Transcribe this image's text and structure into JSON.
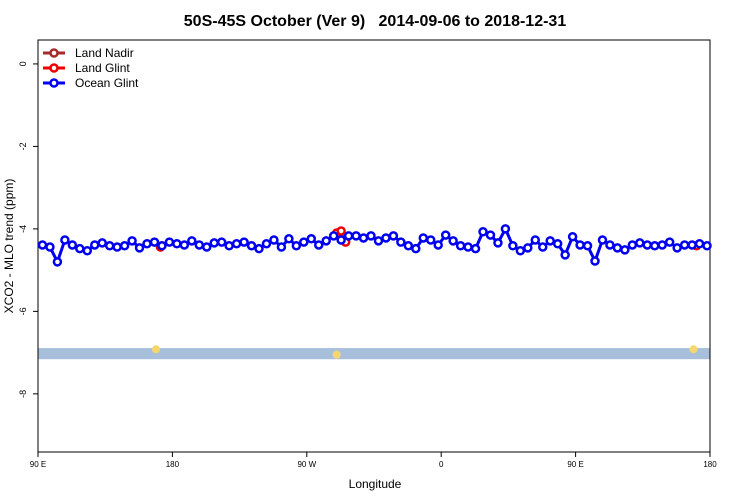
{
  "chart_data": {
    "type": "line",
    "title": "50S-45S October (Ver 9)   2014-09-06 to 2018-12-31",
    "xlabel": "Longitude",
    "ylabel": "XCO2 - MLO trend (ppm)",
    "xlim": [
      90,
      540
    ],
    "ylim": [
      -9.41,
      0.58
    ],
    "xticks": [
      {
        "value": 90,
        "label": "90 E"
      },
      {
        "value": 180,
        "label": "180"
      },
      {
        "value": 270,
        "label": "90 W"
      },
      {
        "value": 360,
        "label": "0"
      },
      {
        "value": 450,
        "label": "90 E"
      },
      {
        "value": 540,
        "label": "180"
      }
    ],
    "yticks": [
      0,
      -2,
      -4,
      -6,
      -8
    ],
    "legend": "top-left",
    "band": {
      "ylim": [
        -6.89,
        -7.16
      ],
      "color": "#a8bfdc"
    },
    "markers": {
      "color": "#f5d76e",
      "x": [
        169,
        290,
        529
      ],
      "values": [
        -6.92,
        -7.05,
        -6.92
      ]
    },
    "series": [
      {
        "name": "Land Nadir",
        "color": "#a52a2a",
        "x": [],
        "values": []
      },
      {
        "name": "Land Glint",
        "color": "#ee0000",
        "x": [
          172,
          177,
          290,
          293,
          296,
          526,
          531
        ],
        "values": [
          -4.44,
          null,
          -4.1,
          -4.05,
          -4.32,
          null,
          -4.41
        ]
      },
      {
        "name": "Ocean Glint",
        "color": "#0000ee",
        "x": [
          93,
          98,
          103,
          108,
          113,
          118,
          123,
          128,
          133,
          138,
          143,
          148,
          153,
          158,
          163,
          168,
          173,
          178,
          183,
          188,
          193,
          198,
          203,
          208,
          213,
          218,
          223,
          228,
          233,
          238,
          243,
          248,
          253,
          258,
          263,
          268,
          273,
          278,
          283,
          288,
          293,
          298,
          303,
          308,
          313,
          318,
          323,
          328,
          333,
          338,
          343,
          348,
          353,
          358,
          363,
          368,
          373,
          378,
          383,
          388,
          393,
          398,
          403,
          408,
          413,
          418,
          423,
          428,
          433,
          438,
          443,
          448,
          453,
          458,
          463,
          468,
          473,
          478,
          483,
          488,
          493,
          498,
          503,
          508,
          513,
          518,
          523,
          528,
          533,
          538
        ],
        "values": [
          -4.39,
          -4.44,
          -4.8,
          -4.27,
          -4.39,
          -4.48,
          -4.53,
          -4.39,
          -4.34,
          -4.41,
          -4.44,
          -4.41,
          -4.29,
          -4.46,
          -4.36,
          -4.32,
          -4.41,
          -4.32,
          -4.36,
          -4.39,
          -4.29,
          -4.39,
          -4.44,
          -4.34,
          -4.32,
          -4.41,
          -4.36,
          -4.32,
          -4.41,
          -4.48,
          -4.36,
          -4.27,
          -4.44,
          -4.24,
          -4.41,
          -4.32,
          -4.24,
          -4.39,
          -4.29,
          -4.17,
          -4.27,
          -4.17,
          -4.17,
          -4.22,
          -4.17,
          -4.29,
          -4.22,
          -4.17,
          -4.32,
          -4.41,
          -4.48,
          -4.22,
          -4.27,
          -4.39,
          -4.15,
          -4.29,
          -4.41,
          -4.44,
          -4.48,
          -4.07,
          -4.15,
          -4.34,
          -4.0,
          -4.41,
          -4.53,
          -4.46,
          -4.27,
          -4.44,
          -4.29,
          -4.36,
          -4.63,
          -4.19,
          -4.39,
          -4.41,
          -4.78,
          -4.27,
          -4.39,
          -4.46,
          -4.51,
          -4.39,
          -4.34,
          -4.39,
          -4.41,
          -4.39,
          -4.32,
          -4.46,
          -4.39,
          -4.39,
          -4.36,
          -4.41
        ]
      }
    ]
  }
}
